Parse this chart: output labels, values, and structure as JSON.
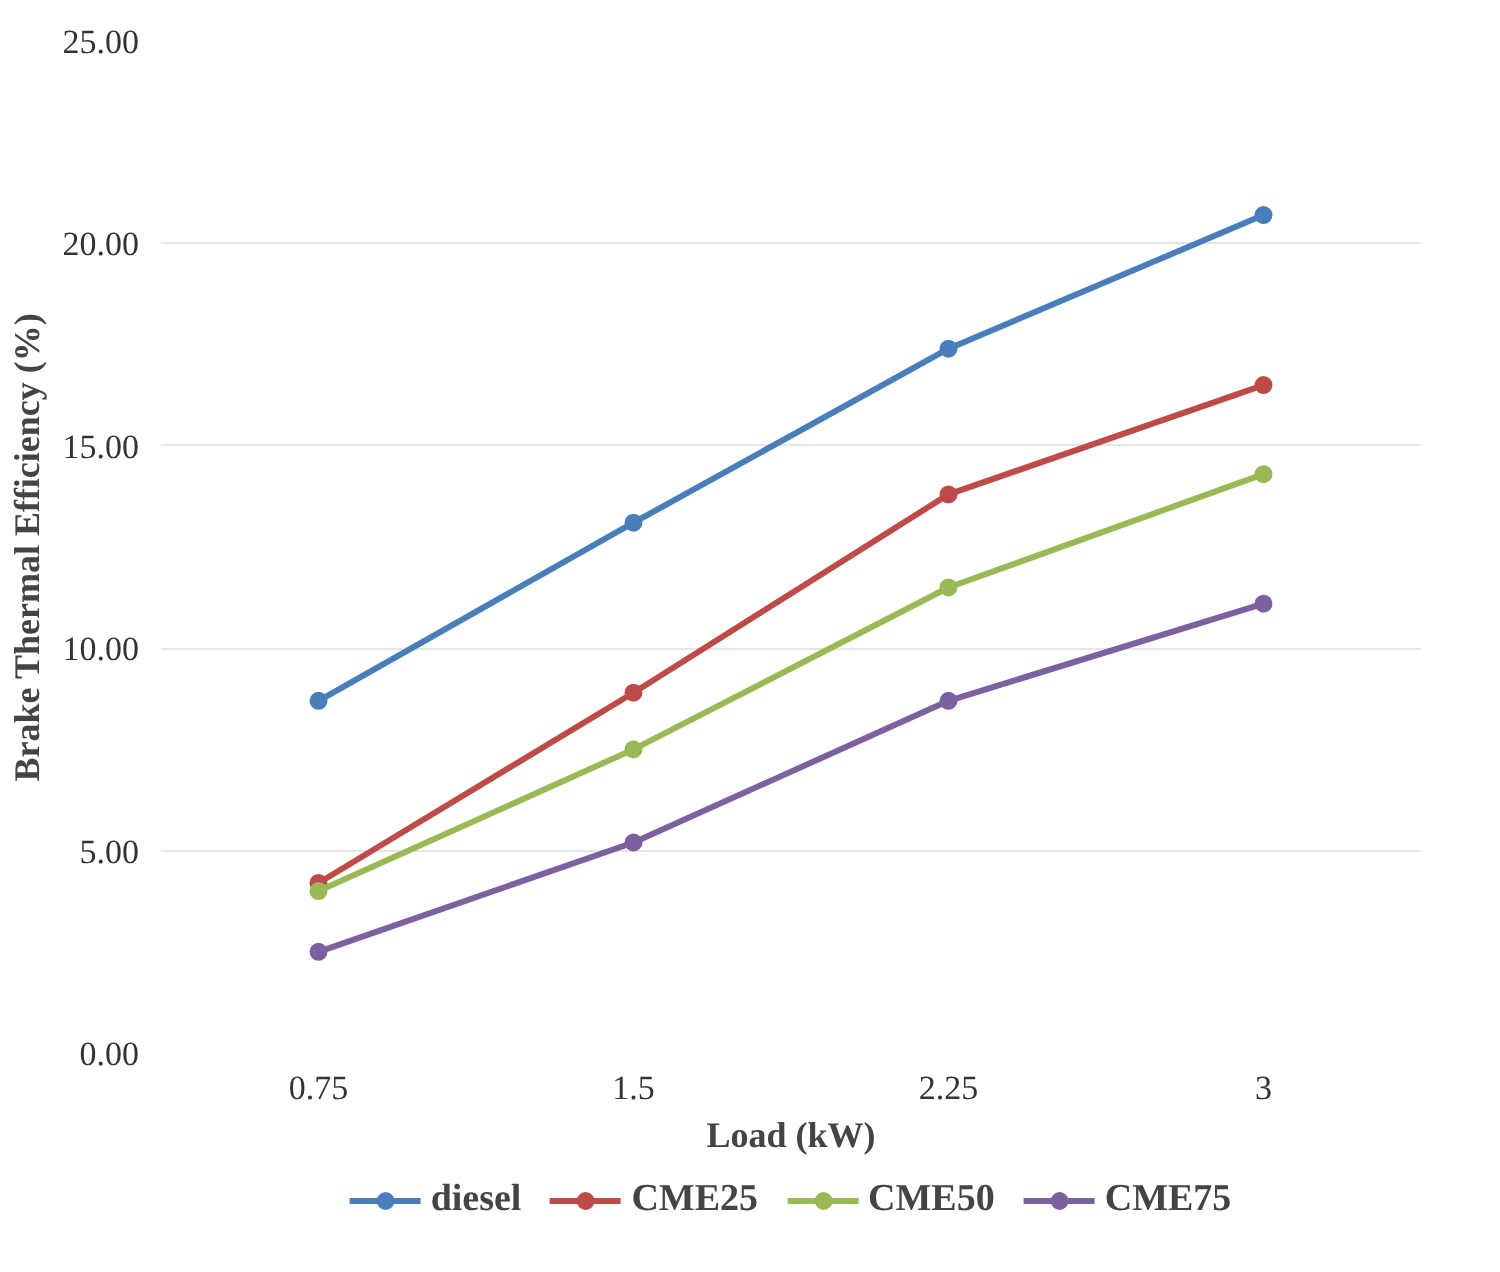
{
  "chart_data": {
    "type": "line",
    "xlabel": "Load (kW)",
    "ylabel": "Brake Thermal Efficiency (%)",
    "categories": [
      "0.75",
      "1.5",
      "2.25",
      "3"
    ],
    "series": [
      {
        "name": "diesel",
        "color": "#4a7ebb",
        "values": [
          8.7,
          13.1,
          17.4,
          20.7
        ]
      },
      {
        "name": "CME25",
        "color": "#be4b48",
        "values": [
          4.2,
          8.9,
          13.8,
          16.5
        ]
      },
      {
        "name": "CME50",
        "color": "#98b954",
        "values": [
          4.0,
          7.5,
          11.5,
          14.3
        ]
      },
      {
        "name": "CME75",
        "color": "#7d60a0",
        "values": [
          2.5,
          5.2,
          8.7,
          11.1
        ]
      }
    ],
    "ylim": [
      0,
      25
    ],
    "yticks": [
      {
        "value": 0,
        "label": "0.00"
      },
      {
        "value": 5,
        "label": "5.00"
      },
      {
        "value": 10,
        "label": "10.00"
      },
      {
        "value": 15,
        "label": "15.00"
      },
      {
        "value": 20,
        "label": "20.00"
      },
      {
        "value": 25,
        "label": "25.00"
      }
    ],
    "grid": "y",
    "legend": "bottom",
    "marker": "circle",
    "line_style": "solid"
  }
}
